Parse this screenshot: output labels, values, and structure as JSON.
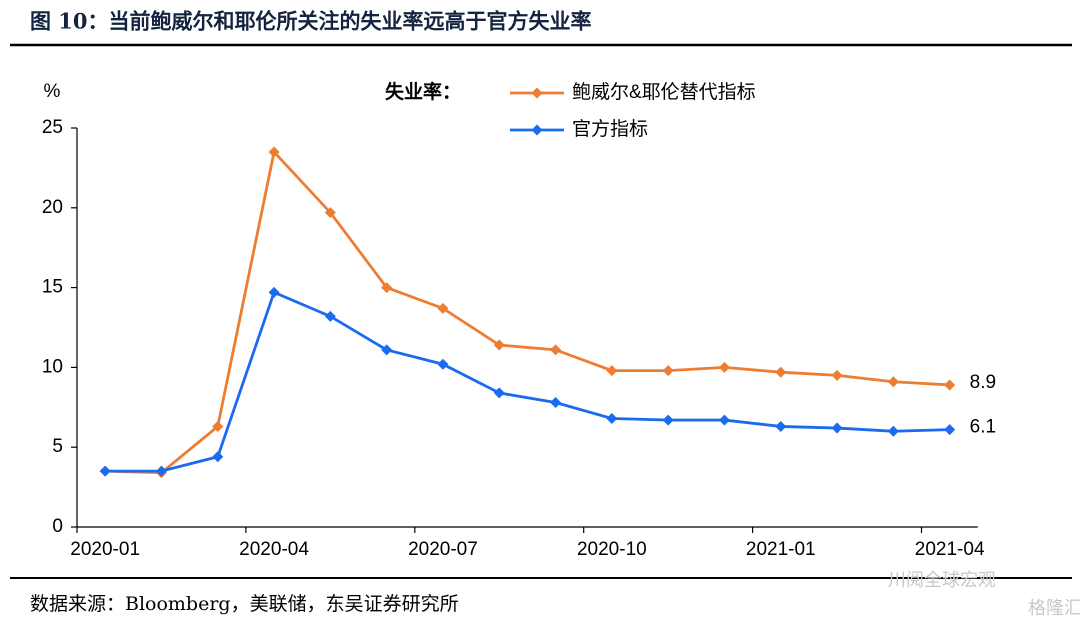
{
  "chart_data": {
    "type": "line",
    "title": "图 10：当前鲍威尔和耶伦所关注的失业率远高于官方失业率",
    "y_label": "%",
    "legend_title": "失业率：",
    "source": "数据来源：Bloomberg，美联储，东吴证券研究所",
    "categories": [
      "2020-01",
      null,
      null,
      "2020-04",
      null,
      null,
      "2020-07",
      null,
      null,
      "2020-10",
      null,
      null,
      "2021-01",
      null,
      null,
      "2021-04"
    ],
    "series": [
      {
        "name": "鲍威尔&耶伦替代指标",
        "color": "#ED7D31",
        "values": [
          3.5,
          3.4,
          6.3,
          23.5,
          19.7,
          15.0,
          13.7,
          11.4,
          11.1,
          9.8,
          9.8,
          10.0,
          9.7,
          9.5,
          9.1,
          8.9
        ]
      },
      {
        "name": "官方指标",
        "color": "#1A6BF0",
        "values": [
          3.5,
          3.5,
          4.4,
          14.7,
          13.2,
          11.1,
          10.2,
          8.4,
          7.8,
          6.8,
          6.7,
          6.7,
          6.3,
          6.2,
          6.0,
          6.1
        ]
      }
    ],
    "ylim": [
      0,
      25
    ],
    "yticks": [
      0,
      5,
      10,
      15,
      20,
      25
    ],
    "grid": false,
    "end_labels": true
  },
  "watermark": [
    "川阅全球宏观",
    "格隆汇"
  ]
}
